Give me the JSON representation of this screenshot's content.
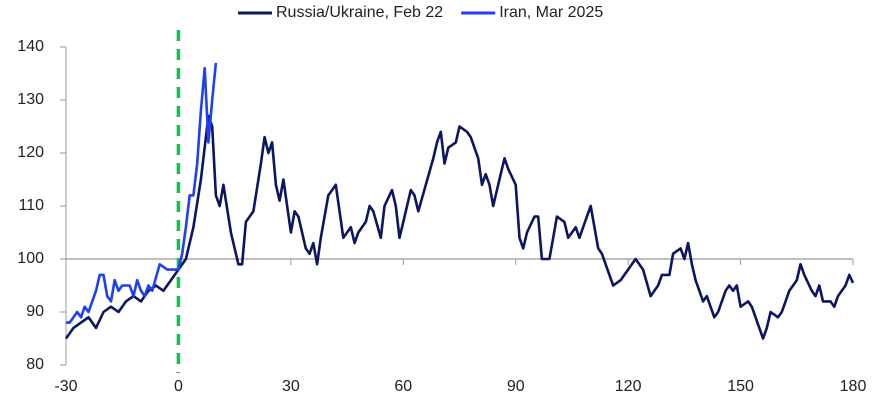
{
  "chart_data": {
    "type": "line",
    "xlim": [
      -30,
      180
    ],
    "xticks": [
      -30,
      0,
      30,
      60,
      90,
      120,
      150,
      180
    ],
    "ylim": [
      80,
      140
    ],
    "yticks": [
      80,
      90,
      100,
      110,
      120,
      130,
      140
    ],
    "x_axis_at": 100,
    "reference_line_x": 0,
    "reference_line_color": "#1db954",
    "grid": false,
    "legend": "top",
    "series": [
      {
        "name": "Russia/Ukraine, Feb 22",
        "color": "#0b1560",
        "x": [
          -30,
          -28,
          -26,
          -24,
          -22,
          -20,
          -18,
          -16,
          -14,
          -12,
          -10,
          -8,
          -6,
          -4,
          -2,
          0,
          2,
          4,
          6,
          8,
          9,
          10,
          11,
          12,
          14,
          16,
          17,
          18,
          20,
          22,
          23,
          24,
          25,
          26,
          27,
          28,
          30,
          31,
          32,
          34,
          35,
          36,
          37,
          38,
          40,
          41,
          42,
          44,
          46,
          47,
          48,
          50,
          51,
          52,
          54,
          55,
          57,
          58,
          59,
          60,
          62,
          63,
          64,
          66,
          68,
          69,
          70,
          71,
          72,
          74,
          75,
          77,
          78,
          80,
          81,
          82,
          83,
          84,
          86,
          87,
          88,
          90,
          91,
          92,
          93,
          95,
          96,
          97,
          98,
          99,
          100,
          101,
          103,
          104,
          106,
          107,
          109,
          110,
          112,
          113,
          115,
          116,
          118,
          120,
          122,
          124,
          126,
          128,
          129,
          131,
          132,
          134,
          135,
          136,
          137,
          138,
          140,
          141,
          143,
          144,
          146,
          147,
          148,
          149,
          150,
          152,
          153,
          155,
          156,
          157,
          158,
          160,
          161,
          163,
          165,
          166,
          167,
          169,
          170,
          171,
          172,
          174,
          175,
          176,
          177,
          178,
          179,
          180
        ],
        "values": [
          85,
          87,
          88,
          89,
          87,
          90,
          91,
          90,
          92,
          93,
          92,
          94,
          95,
          94,
          96,
          98,
          100,
          106,
          115,
          127,
          125,
          112,
          110,
          114,
          105,
          99,
          99,
          107,
          109,
          118,
          123,
          120,
          122,
          114,
          111,
          115,
          105,
          109,
          108,
          102,
          101,
          103,
          99,
          104,
          112,
          113,
          114,
          104,
          106,
          103,
          105,
          107,
          110,
          109,
          104,
          110,
          113,
          110,
          104,
          107,
          113,
          112,
          109,
          114,
          119,
          122,
          124,
          118,
          121,
          122,
          125,
          124,
          123,
          119,
          114,
          116,
          114,
          110,
          116,
          119,
          117,
          114,
          104,
          102,
          105,
          108,
          108,
          100,
          100,
          100,
          104,
          108,
          107,
          104,
          106,
          104,
          108,
          110,
          102,
          101,
          97,
          95,
          96,
          98,
          100,
          98,
          93,
          95,
          97,
          97,
          101,
          102,
          100,
          103,
          99,
          96,
          92,
          93,
          89,
          90,
          94,
          95,
          94,
          95,
          91,
          92,
          91,
          87,
          85,
          87,
          90,
          89,
          90,
          94,
          96,
          99,
          97,
          94,
          93,
          95,
          92,
          92,
          91,
          93,
          94,
          95,
          97,
          95.5
        ]
      },
      {
        "name": "Iran, Mar 2025",
        "color": "#1f3ff0",
        "x": [
          -30,
          -29,
          -27,
          -26,
          -25,
          -24,
          -22,
          -21,
          -20,
          -19,
          -18,
          -17,
          -16,
          -15,
          -13,
          -12,
          -11,
          -10,
          -9,
          -8,
          -7,
          -5,
          -3,
          -1,
          0,
          1,
          2,
          3,
          4,
          5,
          6,
          7,
          8,
          9,
          10
        ],
        "values": [
          88,
          88,
          90,
          89,
          91,
          90,
          94,
          97,
          97,
          93,
          92,
          96,
          94,
          95,
          95,
          93,
          96,
          94,
          93,
          95,
          94,
          99,
          98,
          98,
          98,
          101,
          106,
          112,
          112,
          118,
          128,
          136,
          122,
          130,
          137
        ]
      }
    ]
  }
}
